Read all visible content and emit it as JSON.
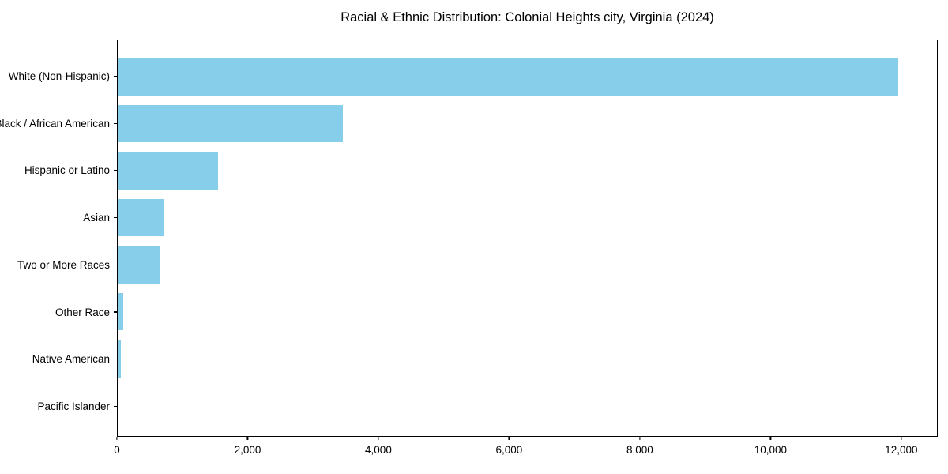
{
  "title": "Racial & Ethnic Distribution: Colonial Heights city, Virginia (2024)",
  "colors": {
    "bar": "#87CEEB",
    "axis": "#000000",
    "background": "#FFFFFF"
  },
  "chart_data": {
    "type": "bar",
    "orientation": "horizontal",
    "title": "Racial & Ethnic Distribution: Colonial Heights city, Virginia (2024)",
    "xlabel": "",
    "ylabel": "",
    "categories": [
      "White (Non-Hispanic)",
      "Black / African American",
      "Hispanic or Latino",
      "Asian",
      "Two or More Races",
      "Other Race",
      "Native American",
      "Pacific Islander"
    ],
    "values": [
      11960,
      3450,
      1535,
      700,
      655,
      85,
      45,
      0
    ],
    "xlim": [
      0,
      12558
    ],
    "xticks": [
      0,
      2000,
      4000,
      6000,
      8000,
      10000,
      12000
    ],
    "xtick_labels": [
      "0",
      "2,000",
      "4,000",
      "6,000",
      "8,000",
      "10,000",
      "12,000"
    ],
    "grid": false,
    "legend_position": "none",
    "bar_color": "#87CEEB"
  }
}
